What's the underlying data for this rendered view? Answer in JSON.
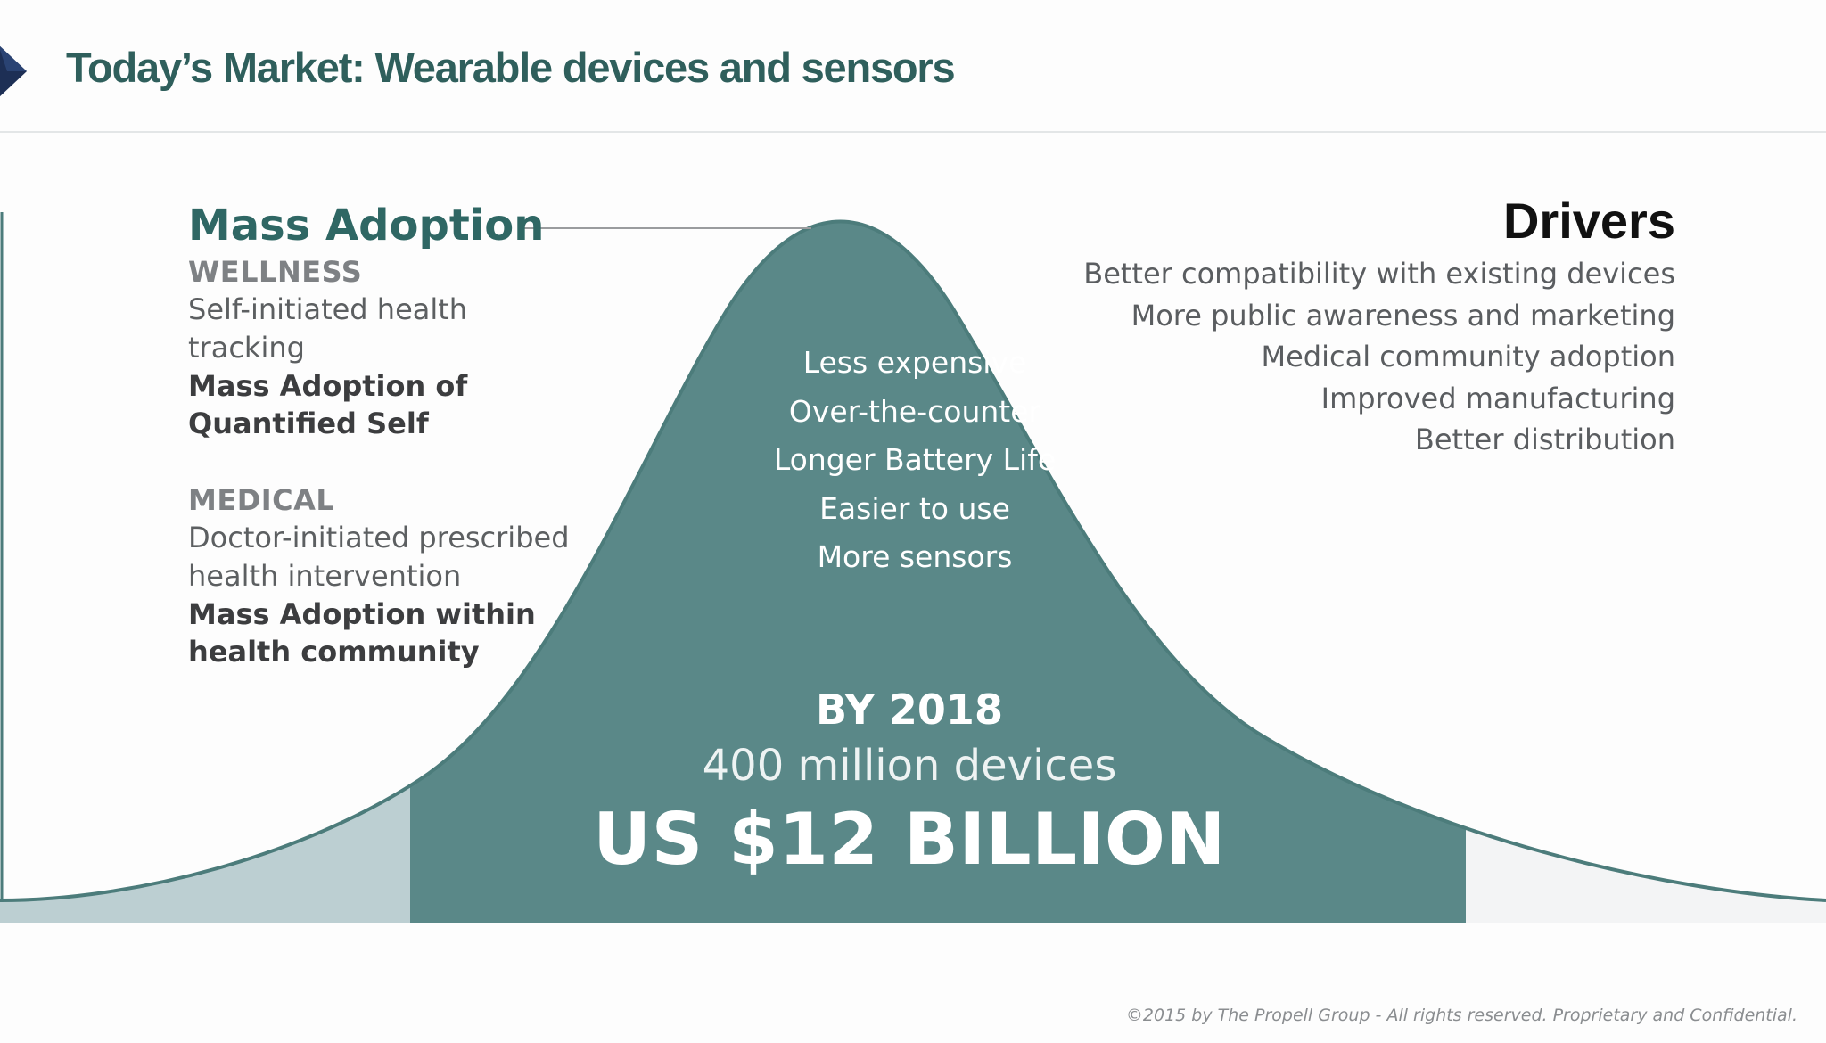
{
  "slide": {
    "title": "Today’s Market: Wearable devices and sensors"
  },
  "left": {
    "heading": "Mass Adoption",
    "wellness": {
      "label": "WELLNESS",
      "description": "Self-initiated health tracking",
      "bold_line_1": "Mass Adoption of",
      "bold_line_2": "Quantified Self"
    },
    "medical": {
      "label": "MEDICAL",
      "description_line_1": "Doctor-initiated prescribed",
      "description_line_2": "health intervention",
      "bold_line_1": "Mass Adoption within",
      "bold_line_2": "health community"
    }
  },
  "center": {
    "items": [
      "Less expensive",
      "Over-the-counter",
      "Longer Battery Life",
      "Easier to use",
      "More sensors"
    ],
    "year": "BY 2018",
    "devices": "400 million devices",
    "market_size": "US $12 BILLION"
  },
  "drivers": {
    "title": "Drivers",
    "items": [
      "Better compatibility with existing devices",
      "More public awareness and marketing",
      "Medical community adoption",
      "Improved manufacturing",
      "Better distribution"
    ]
  },
  "footer": {
    "copyright": "©2015 by The Propell Group -  All rights reserved. Proprietary and Confidential."
  },
  "colors": {
    "teal": "#5a8888",
    "title": "#2f5f5c",
    "light_teal": "#bccfd2",
    "light_gray": "#f3f4f5"
  }
}
